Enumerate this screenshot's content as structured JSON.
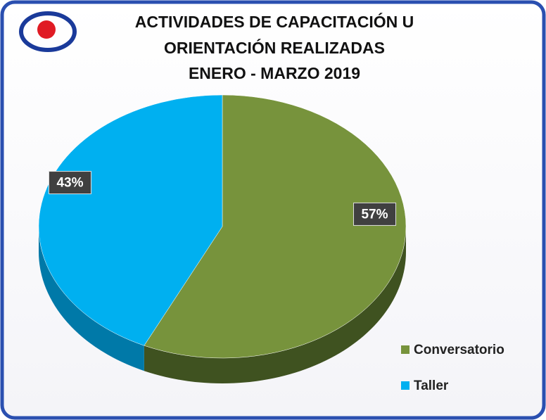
{
  "chart_data": {
    "type": "pie",
    "title": [
      "ACTIVIDADES DE CAPACITACIÓN U",
      "ORIENTACIÓN REALIZADAS",
      "ENERO - MARZO 2019"
    ],
    "categories": [
      "Conversatorio",
      "Taller"
    ],
    "values": [
      57,
      43
    ],
    "value_labels": [
      "57%",
      "43%"
    ],
    "colors": [
      "#77933c",
      "#00b0f0"
    ],
    "side_colors": [
      "#3f5220",
      "#0079a8"
    ],
    "legend": "bottom-right"
  }
}
